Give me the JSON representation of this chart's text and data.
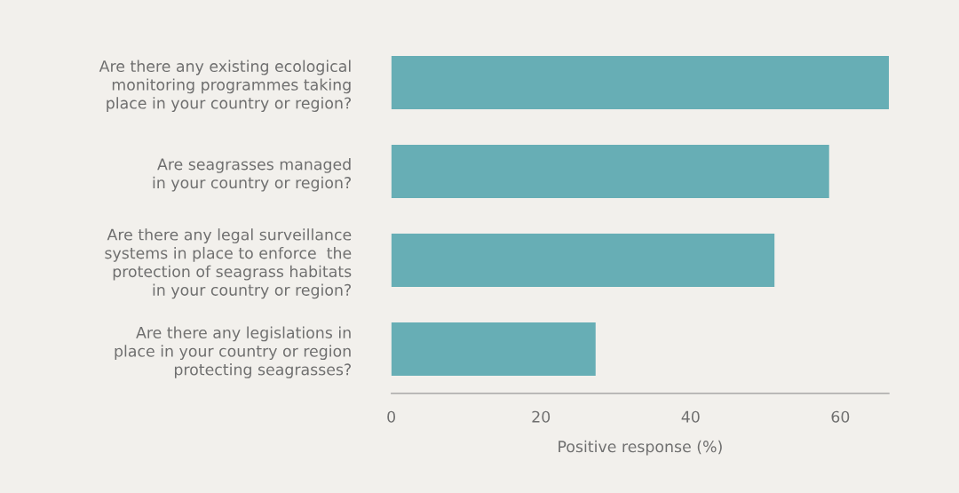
{
  "chart_data": {
    "type": "bar",
    "orientation": "horizontal",
    "xlabel": "Positive response (%)",
    "categories": [
      "Are there any existing ecological\nmonitoring programmes taking\nplace in your country or region?",
      "Are seagrasses managed\nin your country or region?",
      "Are there any legal surveillance\nsystems in place to enforce  the\nprotection of seagrass habitats\nin your country or region?",
      "Are there any legislations in\nplace in your country or region\nprotecting seagrasses?"
    ],
    "values": [
      66.5,
      58.5,
      51.2,
      27.3
    ],
    "color": "#67aeb5",
    "xlim": [
      0,
      66.5
    ],
    "xticks": [
      0,
      20,
      40,
      60
    ],
    "grid": false,
    "legend": false
  }
}
